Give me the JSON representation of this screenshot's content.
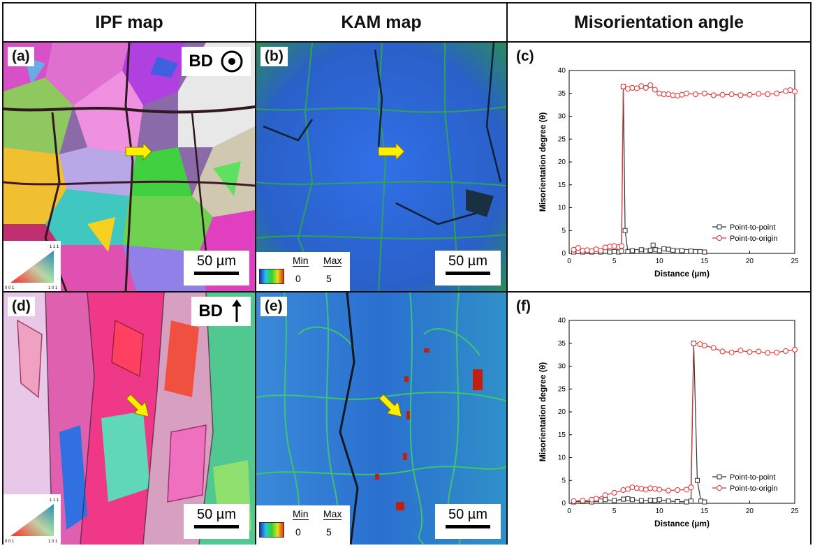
{
  "headers": {
    "col1": "IPF map",
    "col2": "KAM map",
    "col3": "Misorientation angle"
  },
  "panels": {
    "a": {
      "label": "(a)",
      "bd": "BD",
      "scale": "50 µm",
      "triangle": {
        "top": "1 1 1",
        "left": "0 0 1",
        "right": "1 0 1"
      }
    },
    "b": {
      "label": "(b)",
      "scale": "50 µm",
      "legend": {
        "min_label": "Min",
        "max_label": "Max",
        "min_value": "0",
        "max_value": "5"
      }
    },
    "c": {
      "label": "(c)"
    },
    "d": {
      "label": "(d)",
      "bd": "BD",
      "scale": "50 µm",
      "triangle": {
        "top": "1 1 1",
        "left": "0 0 1",
        "right": "1 0 1"
      }
    },
    "e": {
      "label": "(e)",
      "scale": "50 µm",
      "legend": {
        "min_label": "Min",
        "max_label": "Max",
        "min_value": "0",
        "max_value": "5"
      }
    },
    "f": {
      "label": "(f)"
    }
  },
  "colors": {
    "point_to_point": "#333333",
    "point_to_origin": "#e03030",
    "arrow": "#ffee00"
  },
  "chart_data": [
    {
      "type": "line",
      "panel": "c",
      "title": "",
      "xlabel": "Distance (µm)",
      "ylabel": "Misorientation degree (θ)",
      "xlim": [
        0,
        25
      ],
      "ylim": [
        0,
        40
      ],
      "xticks": [
        0,
        5,
        10,
        15,
        20,
        25
      ],
      "yticks": [
        0,
        5,
        10,
        15,
        20,
        25,
        30,
        35,
        40
      ],
      "legend_position": "bottom-right",
      "series": [
        {
          "name": "Point-to-point",
          "x": [
            0.5,
            1.0,
            1.5,
            2.0,
            2.5,
            3.0,
            3.5,
            4.0,
            4.5,
            5.0,
            5.5,
            5.8,
            6.0,
            6.2,
            6.5,
            7.0,
            7.5,
            8.0,
            8.5,
            9.0,
            9.3,
            9.6,
            10.0,
            10.5,
            11.0,
            11.5,
            12.0,
            12.5,
            13.0,
            13.5,
            14.0,
            14.5,
            15.0
          ],
          "y": [
            0.3,
            0.4,
            0.3,
            0.4,
            0.3,
            0.4,
            0.3,
            0.5,
            0.3,
            0.4,
            0.3,
            0.5,
            36.5,
            5.0,
            0.4,
            0.6,
            0.4,
            0.8,
            0.5,
            0.7,
            1.8,
            0.8,
            0.6,
            1.0,
            0.9,
            0.7,
            0.5,
            0.6,
            0.4,
            0.5,
            0.4,
            0.4,
            0.3
          ]
        },
        {
          "name": "Point-to-origin",
          "x": [
            0.5,
            1.0,
            1.5,
            2.0,
            2.5,
            3.0,
            3.5,
            4.0,
            4.5,
            5.0,
            5.5,
            5.8,
            6.0,
            6.5,
            7.0,
            7.5,
            8.0,
            8.5,
            9.0,
            9.5,
            10.0,
            10.5,
            11.0,
            11.5,
            12.0,
            12.5,
            13.0,
            14.0,
            15.0,
            16.0,
            17.0,
            18.0,
            19.0,
            20.0,
            21.0,
            22.0,
            23.0,
            24.0,
            24.5,
            25.0
          ],
          "y": [
            0.8,
            1.2,
            0.6,
            0.7,
            0.5,
            0.9,
            0.6,
            1.3,
            1.5,
            1.6,
            1.4,
            1.6,
            36.5,
            36.0,
            36.2,
            36.1,
            36.6,
            36.2,
            36.8,
            35.8,
            35.0,
            34.8,
            34.8,
            34.6,
            34.5,
            34.7,
            35.0,
            34.8,
            35.0,
            34.6,
            34.7,
            34.8,
            34.6,
            34.7,
            34.9,
            34.8,
            35.0,
            35.5,
            35.7,
            35.4
          ]
        }
      ]
    },
    {
      "type": "line",
      "panel": "f",
      "title": "",
      "xlabel": "Distance (µm)",
      "ylabel": "Misorientation degree (θ)",
      "xlim": [
        0,
        25
      ],
      "ylim": [
        0,
        40
      ],
      "xticks": [
        0,
        5,
        10,
        15,
        20,
        25
      ],
      "yticks": [
        0,
        5,
        10,
        15,
        20,
        25,
        30,
        35,
        40
      ],
      "legend_position": "bottom-right",
      "series": [
        {
          "name": "Point-to-point",
          "x": [
            0.5,
            1.5,
            2.5,
            3.5,
            4.0,
            5.0,
            6.0,
            6.5,
            7.0,
            8.0,
            9.0,
            9.5,
            10.0,
            11.0,
            12.0,
            13.0,
            13.5,
            13.8,
            14.2,
            14.6,
            15.0
          ],
          "y": [
            0.3,
            0.4,
            0.3,
            0.5,
            0.8,
            0.6,
            0.9,
            1.0,
            0.8,
            0.6,
            0.7,
            0.6,
            0.8,
            0.5,
            0.4,
            0.3,
            0.5,
            35.0,
            5.0,
            0.5,
            0.3
          ]
        },
        {
          "name": "Point-to-origin",
          "x": [
            0.5,
            1.5,
            2.5,
            3.0,
            4.0,
            5.0,
            6.0,
            6.5,
            7.0,
            7.5,
            8.0,
            8.5,
            9.0,
            9.5,
            10.0,
            11.0,
            12.0,
            13.0,
            13.5,
            13.8,
            14.5,
            15.0,
            16.0,
            17.0,
            18.0,
            19.0,
            20.0,
            21.0,
            22.0,
            23.0,
            24.0,
            25.0
          ],
          "y": [
            0.5,
            0.6,
            0.8,
            1.0,
            1.8,
            2.3,
            2.9,
            3.1,
            3.5,
            3.3,
            3.2,
            3.0,
            3.3,
            3.2,
            3.0,
            2.8,
            2.9,
            3.0,
            3.5,
            35.0,
            34.8,
            34.5,
            34.0,
            33.2,
            33.0,
            33.4,
            33.1,
            33.2,
            32.9,
            33.0,
            33.3,
            33.6
          ]
        }
      ]
    }
  ]
}
